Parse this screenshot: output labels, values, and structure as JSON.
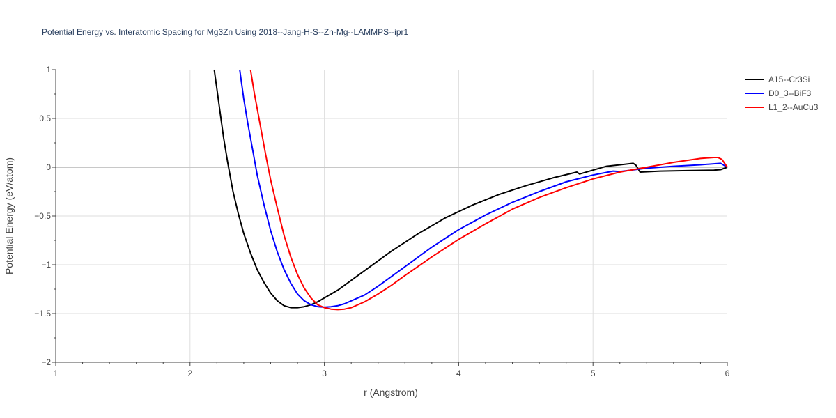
{
  "chart_data": {
    "type": "line",
    "title": "Potential Energy vs. Interatomic Spacing for Mg3Zn Using 2018--Jang-H-S--Zn-Mg--LAMMPS--ipr1",
    "xlabel": "r (Angstrom)",
    "ylabel": "Potential Energy (eV/atom)",
    "xlim": [
      1,
      6
    ],
    "ylim": [
      -2,
      1
    ],
    "xticks": [
      1,
      2,
      3,
      4,
      5,
      6
    ],
    "xtick_labels": [
      "1",
      "2",
      "3",
      "4",
      "5",
      "6"
    ],
    "yticks": [
      1,
      0.5,
      0,
      -0.5,
      -1,
      -1.5,
      -2
    ],
    "ytick_labels": [
      "1",
      "0.5",
      "0",
      "−0.5",
      "−1",
      "−1.5",
      "−2"
    ],
    "grid": true,
    "legend_position": "top-right",
    "series": [
      {
        "name": "A15--Cr3Si",
        "color": "#000000",
        "x": [
          2.18,
          2.2,
          2.22,
          2.25,
          2.28,
          2.32,
          2.36,
          2.4,
          2.45,
          2.5,
          2.55,
          2.6,
          2.65,
          2.7,
          2.75,
          2.8,
          2.85,
          2.9,
          2.95,
          3.0,
          3.1,
          3.2,
          3.3,
          3.4,
          3.5,
          3.7,
          3.9,
          4.1,
          4.3,
          4.5,
          4.7,
          4.85,
          4.88,
          4.9,
          5.1,
          5.3,
          5.32,
          5.35,
          5.5,
          5.7,
          5.9,
          5.95,
          6.0
        ],
        "y": [
          1.0,
          0.8,
          0.6,
          0.3,
          0.05,
          -0.25,
          -0.48,
          -0.68,
          -0.88,
          -1.05,
          -1.18,
          -1.29,
          -1.37,
          -1.42,
          -1.44,
          -1.44,
          -1.43,
          -1.41,
          -1.38,
          -1.34,
          -1.26,
          -1.16,
          -1.06,
          -0.96,
          -0.86,
          -0.68,
          -0.52,
          -0.39,
          -0.28,
          -0.19,
          -0.11,
          -0.06,
          -0.05,
          -0.07,
          0.01,
          0.04,
          0.02,
          -0.05,
          -0.04,
          -0.035,
          -0.03,
          -0.025,
          0.0
        ]
      },
      {
        "name": "D0_3--BiF3",
        "color": "#0000ff",
        "x": [
          2.37,
          2.4,
          2.43,
          2.47,
          2.5,
          2.55,
          2.6,
          2.65,
          2.7,
          2.75,
          2.8,
          2.85,
          2.9,
          2.95,
          3.0,
          3.05,
          3.1,
          3.15,
          3.2,
          3.3,
          3.4,
          3.5,
          3.6,
          3.8,
          4.0,
          4.2,
          4.4,
          4.6,
          4.8,
          5.0,
          5.15,
          5.2,
          5.4,
          5.6,
          5.8,
          5.95,
          6.0
        ],
        "y": [
          1.0,
          0.7,
          0.45,
          0.15,
          -0.08,
          -0.38,
          -0.65,
          -0.87,
          -1.05,
          -1.19,
          -1.3,
          -1.37,
          -1.41,
          -1.43,
          -1.435,
          -1.43,
          -1.42,
          -1.4,
          -1.37,
          -1.31,
          -1.22,
          -1.12,
          -1.02,
          -0.82,
          -0.64,
          -0.49,
          -0.36,
          -0.25,
          -0.15,
          -0.08,
          -0.04,
          -0.045,
          -0.01,
          0.01,
          0.025,
          0.04,
          0.0
        ]
      },
      {
        "name": "L1_2--AuCu3",
        "color": "#ff0000",
        "x": [
          2.45,
          2.48,
          2.52,
          2.56,
          2.6,
          2.65,
          2.7,
          2.75,
          2.8,
          2.85,
          2.9,
          2.95,
          3.0,
          3.05,
          3.1,
          3.15,
          3.2,
          3.3,
          3.4,
          3.5,
          3.6,
          3.8,
          4.0,
          4.2,
          4.4,
          4.6,
          4.8,
          5.0,
          5.2,
          5.4,
          5.6,
          5.8,
          5.9,
          5.93,
          5.96,
          6.0
        ],
        "y": [
          1.0,
          0.75,
          0.45,
          0.15,
          -0.13,
          -0.42,
          -0.7,
          -0.92,
          -1.1,
          -1.24,
          -1.34,
          -1.41,
          -1.44,
          -1.455,
          -1.46,
          -1.455,
          -1.44,
          -1.38,
          -1.3,
          -1.21,
          -1.11,
          -0.92,
          -0.74,
          -0.58,
          -0.43,
          -0.31,
          -0.21,
          -0.12,
          -0.05,
          0.0,
          0.05,
          0.09,
          0.1,
          0.1,
          0.08,
          0.0
        ]
      }
    ]
  }
}
